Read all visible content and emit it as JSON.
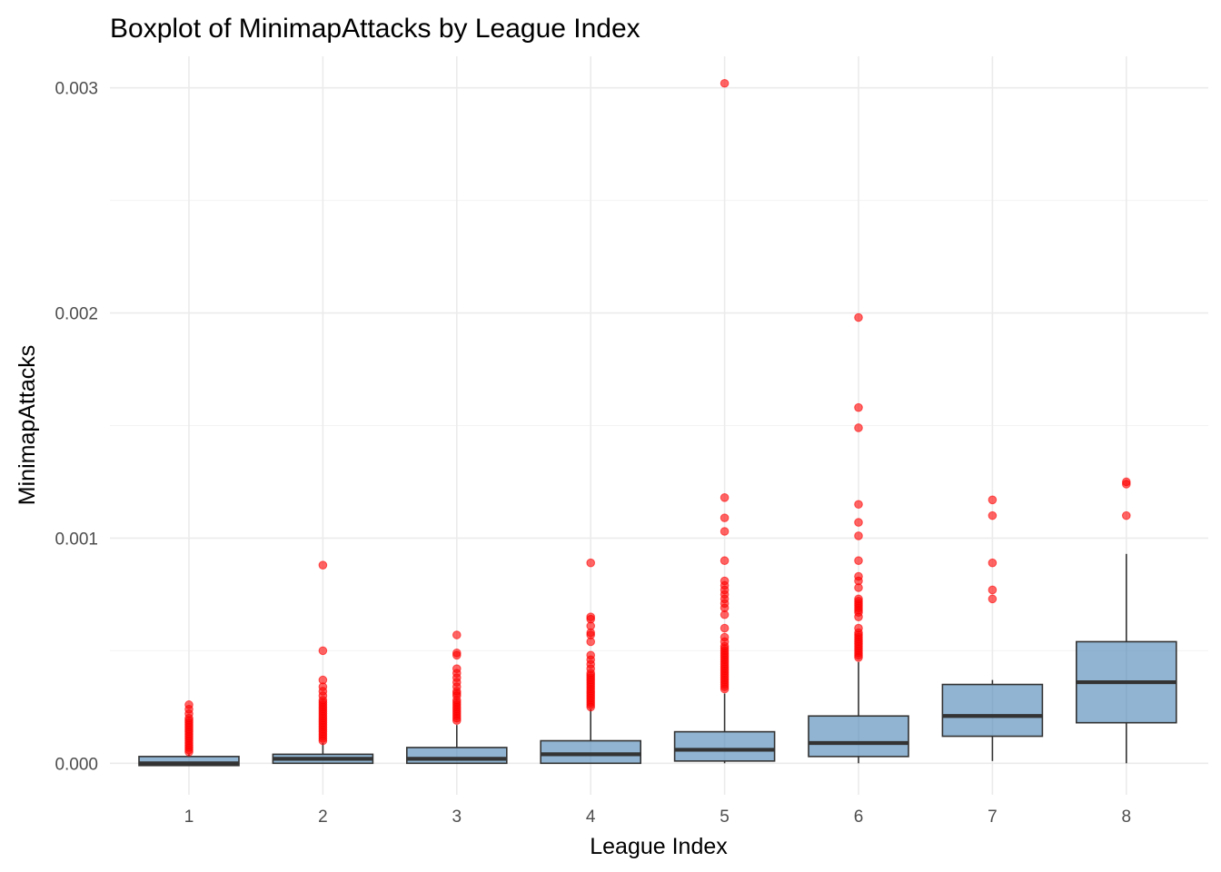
{
  "chart_data": {
    "type": "boxplot",
    "title": "Boxplot of MinimapAttacks by League Index",
    "xlabel": "League Index",
    "ylabel": "MinimapAttacks",
    "categories": [
      "1",
      "2",
      "3",
      "4",
      "5",
      "6",
      "7",
      "8"
    ],
    "ylim": [
      -0.00014,
      0.00314
    ],
    "y_ticks": [
      0.0,
      0.001,
      0.002,
      0.003
    ],
    "y_tick_labels": [
      "0.000",
      "0.001",
      "0.002",
      "0.003"
    ],
    "grid": true,
    "colors": {
      "box_fill": "#4682b4",
      "outlier": "#ff0000",
      "line": "#333333"
    },
    "boxes": [
      {
        "category": "1",
        "min": -1e-05,
        "q1": -1e-05,
        "median": 0.0,
        "q3": 3e-05,
        "max": 4e-05,
        "outliers": [
          5e-05,
          6e-05,
          7e-05,
          8e-05,
          9e-05,
          0.0001,
          0.00011,
          0.00012,
          0.00013,
          0.00014,
          0.00015,
          0.00016,
          0.00017,
          0.00018,
          0.00019,
          0.0002,
          0.00022,
          0.00024,
          0.00026
        ]
      },
      {
        "category": "2",
        "min": 0.0,
        "q1": 0.0,
        "median": 2e-05,
        "q3": 4e-05,
        "max": 9e-05,
        "outliers": [
          0.0001,
          0.00011,
          0.00012,
          0.00013,
          0.00014,
          0.00015,
          0.00016,
          0.00017,
          0.00018,
          0.00019,
          0.0002,
          0.00021,
          0.00022,
          0.00023,
          0.00024,
          0.00025,
          0.00026,
          0.00027,
          0.00028,
          0.0003,
          0.00032,
          0.00034,
          0.00037,
          0.0005,
          0.00088
        ]
      },
      {
        "category": "3",
        "min": 0.0,
        "q1": 0.0,
        "median": 2e-05,
        "q3": 7e-05,
        "max": 0.00017,
        "outliers": [
          0.00019,
          0.0002,
          0.00021,
          0.00022,
          0.00023,
          0.00024,
          0.00025,
          0.00026,
          0.00027,
          0.00028,
          0.0003,
          0.00031,
          0.00032,
          0.00034,
          0.00036,
          0.00038,
          0.0004,
          0.00042,
          0.00048,
          0.00049,
          0.00057
        ]
      },
      {
        "category": "4",
        "min": 0.0,
        "q1": 0.0,
        "median": 4e-05,
        "q3": 0.0001,
        "max": 0.00024,
        "outliers": [
          0.00025,
          0.00026,
          0.00027,
          0.00028,
          0.00029,
          0.0003,
          0.00031,
          0.00032,
          0.00033,
          0.00034,
          0.00035,
          0.00036,
          0.00037,
          0.00038,
          0.00039,
          0.0004,
          0.00042,
          0.00044,
          0.00046,
          0.00048,
          0.00054,
          0.00057,
          0.00058,
          0.00061,
          0.00064,
          0.00065,
          0.00089
        ]
      },
      {
        "category": "5",
        "min": 0.0,
        "q1": 1e-05,
        "median": 6e-05,
        "q3": 0.00014,
        "max": 0.00031,
        "outliers": [
          0.00033,
          0.00034,
          0.00035,
          0.00036,
          0.00037,
          0.00038,
          0.00039,
          0.0004,
          0.00041,
          0.00042,
          0.00043,
          0.00044,
          0.00045,
          0.00046,
          0.00047,
          0.00048,
          0.00049,
          0.0005,
          0.00051,
          0.00052,
          0.00054,
          0.00056,
          0.0006,
          0.00066,
          0.00069,
          0.00071,
          0.00073,
          0.00075,
          0.00077,
          0.00079,
          0.00081,
          0.0009,
          0.00103,
          0.00109,
          0.00118,
          0.00302
        ]
      },
      {
        "category": "6",
        "min": 0.0,
        "q1": 3e-05,
        "median": 9e-05,
        "q3": 0.00021,
        "max": 0.00045,
        "outliers": [
          0.00047,
          0.00048,
          0.00049,
          0.0005,
          0.00051,
          0.00052,
          0.00053,
          0.00054,
          0.00055,
          0.00056,
          0.00057,
          0.00058,
          0.0006,
          0.00065,
          0.00067,
          0.00068,
          0.00069,
          0.0007,
          0.00071,
          0.00072,
          0.00073,
          0.00078,
          0.00081,
          0.00083,
          0.0009,
          0.00101,
          0.00107,
          0.00115,
          0.00149,
          0.00158,
          0.00198
        ]
      },
      {
        "category": "7",
        "min": 1e-05,
        "q1": 0.00012,
        "median": 0.00021,
        "q3": 0.00035,
        "max": 0.00037,
        "outliers": [
          0.00073,
          0.00077,
          0.00089,
          0.0011,
          0.00117
        ]
      },
      {
        "category": "8",
        "min": 0.0,
        "q1": 0.00018,
        "median": 0.00036,
        "q3": 0.00054,
        "max": 0.00093,
        "outliers": [
          0.0011,
          0.00124,
          0.00125
        ]
      }
    ]
  }
}
